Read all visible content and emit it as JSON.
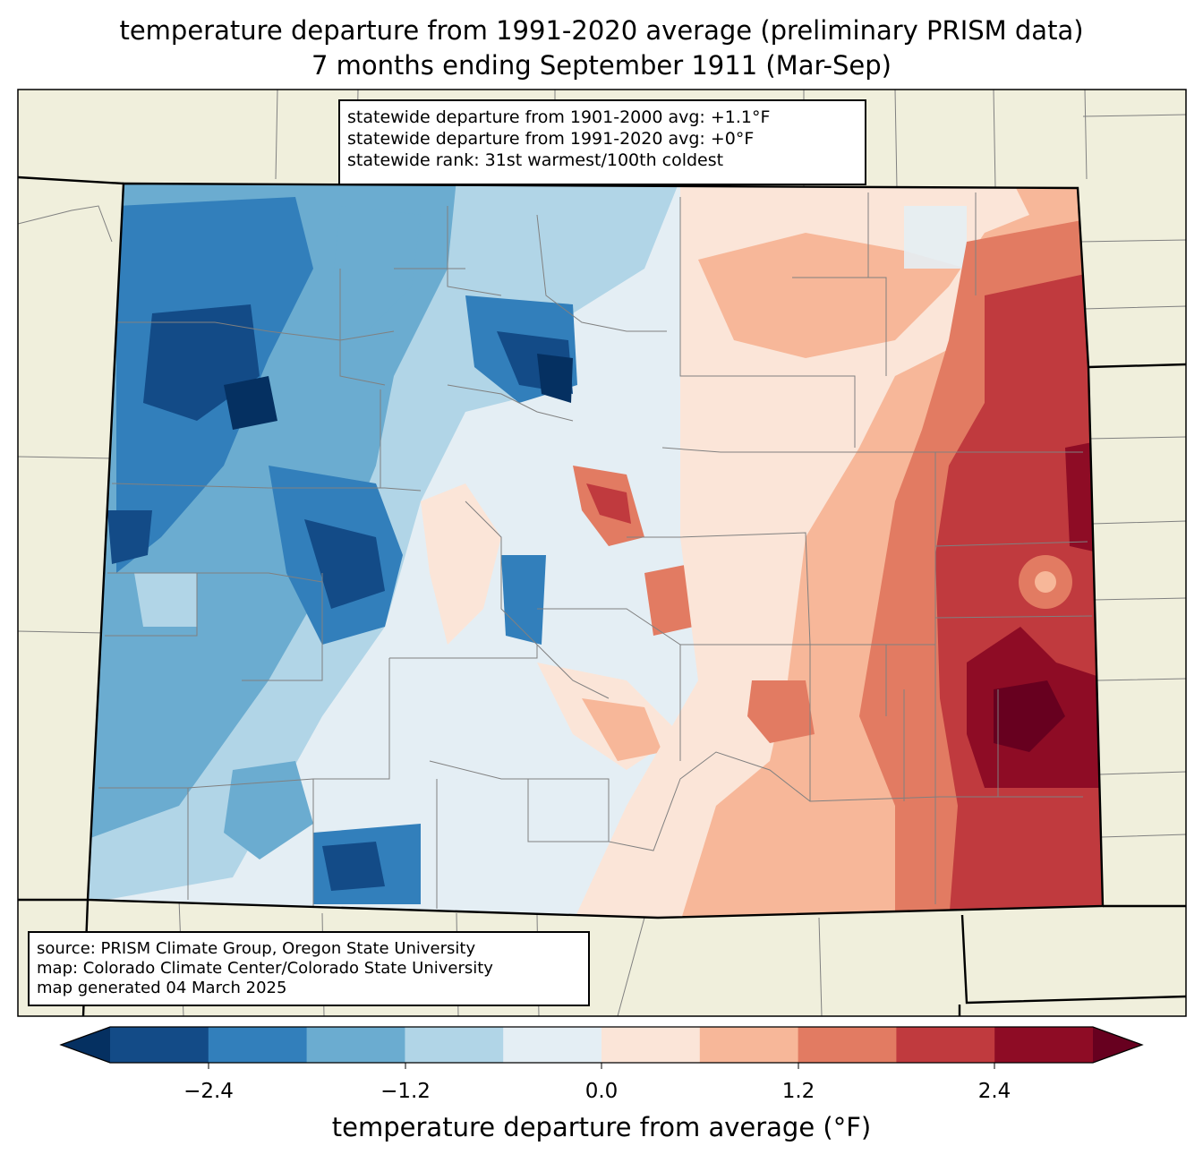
{
  "title": {
    "line1": "temperature departure from 1991-2020 average (preliminary PRISM data)",
    "line2": "7 months ending September 1911 (Mar-Sep)"
  },
  "stats_box": {
    "line1": "statewide departure from 1901-2000 avg: +1.1°F",
    "line2": "statewide departure from 1991-2020 avg: +0°F",
    "line3": "statewide rank: 31st warmest/100th coldest"
  },
  "source_box": {
    "line1": "source: PRISM Climate Group, Oregon State University",
    "line2": "map: Colorado Climate Center/Colorado State University",
    "line3": "map generated 04 March 2025"
  },
  "colorbar": {
    "label": "temperature departure from average (°F)",
    "ticks": [
      "−2.4",
      "−1.2",
      "0.0",
      "1.2",
      "2.4"
    ],
    "bin_colors": [
      "#053061",
      "#134b87",
      "#327fbb",
      "#6bacd0",
      "#b1d5e7",
      "#e4eef4",
      "#fbe5d8",
      "#f7b799",
      "#e27b62",
      "#c03a3e",
      "#8e0c25",
      "#67001f"
    ]
  },
  "colors": {
    "land": "#f0efdc",
    "county_line": "#808080",
    "state_line": "#000000"
  }
}
